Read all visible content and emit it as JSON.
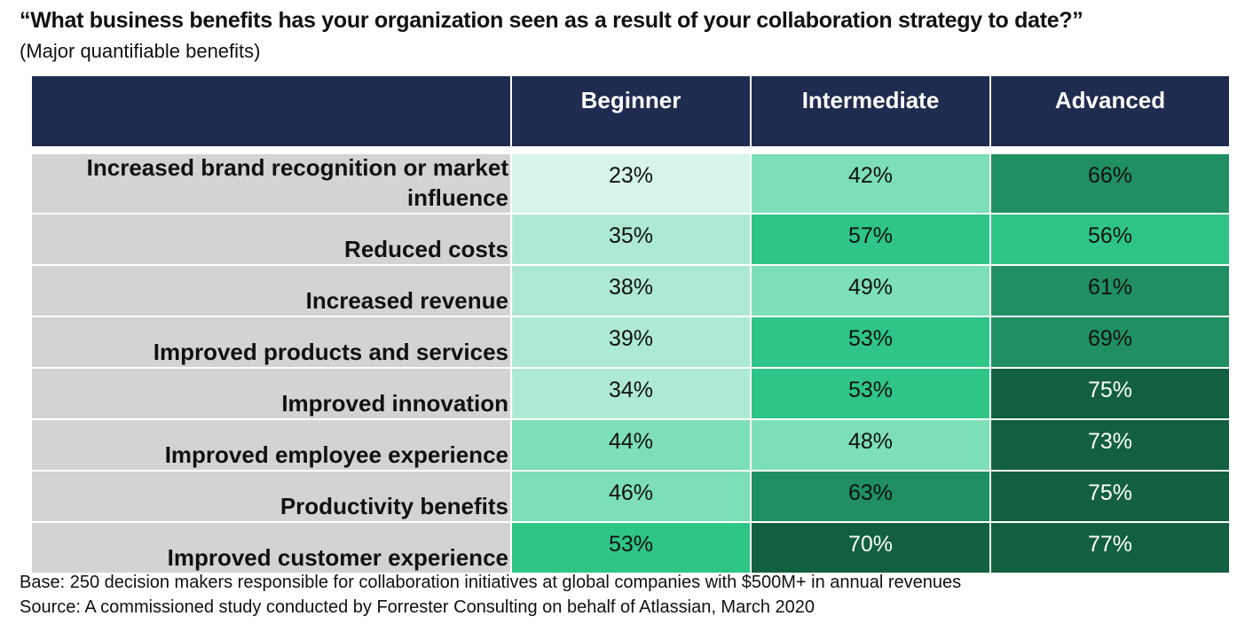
{
  "title": "“What business benefits has your organization seen as a result of your collaboration strategy to date?”",
  "subtitle": "(Major quantifiable benefits)",
  "footer": {
    "base": "Base: 250 decision makers responsible for collaboration initiatives at global companies with $500M+ in annual revenues",
    "source": "Source: A commissioned study conducted by Forrester Consulting on behalf of Atlassian, March 2020"
  },
  "colors": {
    "header_bg": "#1f2b4f",
    "label_bg": "#d3d4d2",
    "shade_0": "#d6f4e8",
    "shade_1": "#aeead3",
    "shade_2": "#7ddfb7",
    "shade_3": "#2fc587",
    "shade_4": "#208f61",
    "shade_5": "#12603f"
  },
  "chart_data": {
    "type": "table",
    "columns": [
      "Beginner",
      "Intermediate",
      "Advanced"
    ],
    "rows": [
      {
        "label": "Increased brand recognition or market influence",
        "label_lines": [
          "Increased brand recognition or market",
          "influence"
        ],
        "values": [
          23,
          42,
          66
        ],
        "shades": [
          0,
          2,
          4
        ]
      },
      {
        "label": "Reduced costs",
        "label_lines": [
          "Reduced costs"
        ],
        "values": [
          35,
          57,
          56
        ],
        "shades": [
          1,
          3,
          3
        ]
      },
      {
        "label": "Increased revenue",
        "label_lines": [
          "Increased revenue"
        ],
        "values": [
          38,
          49,
          61
        ],
        "shades": [
          1,
          2,
          4
        ]
      },
      {
        "label": "Improved products and services",
        "label_lines": [
          "Improved products and services"
        ],
        "values": [
          39,
          53,
          69
        ],
        "shades": [
          1,
          3,
          4
        ]
      },
      {
        "label": "Improved innovation",
        "label_lines": [
          "Improved innovation"
        ],
        "values": [
          34,
          53,
          75
        ],
        "shades": [
          1,
          3,
          5
        ]
      },
      {
        "label": "Improved employee experience",
        "label_lines": [
          "Improved employee experience"
        ],
        "values": [
          44,
          48,
          73
        ],
        "shades": [
          2,
          2,
          5
        ]
      },
      {
        "label": "Productivity benefits",
        "label_lines": [
          "Productivity benefits"
        ],
        "values": [
          46,
          63,
          75
        ],
        "shades": [
          2,
          4,
          5
        ]
      },
      {
        "label": "Improved customer experience",
        "label_lines": [
          "Improved customer experience"
        ],
        "values": [
          53,
          70,
          77
        ],
        "shades": [
          3,
          5,
          5
        ]
      }
    ],
    "value_suffix": "%"
  }
}
